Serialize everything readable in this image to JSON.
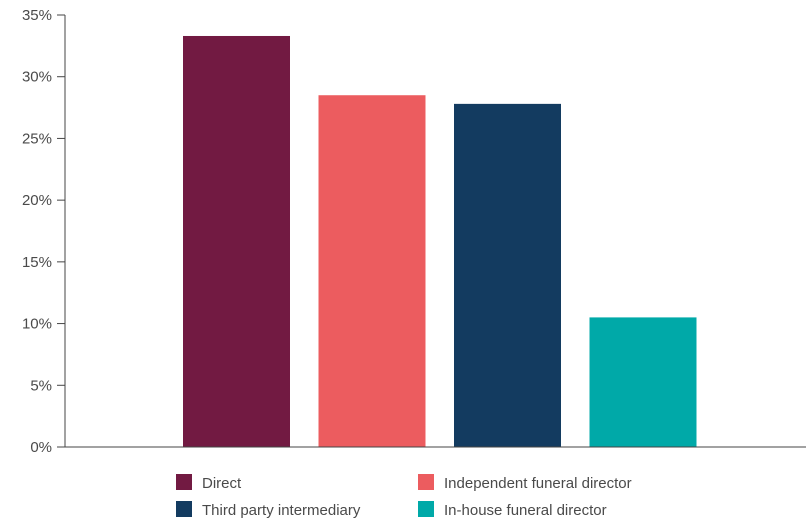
{
  "chart_data": {
    "type": "bar",
    "title": "",
    "xlabel": "",
    "ylabel": "",
    "ylim": [
      0,
      35
    ],
    "y_ticks": [
      0,
      5,
      10,
      15,
      20,
      25,
      30,
      35
    ],
    "y_tick_format": "percent",
    "grid": false,
    "legend_position": "bottom",
    "categories": [
      "Direct",
      "Independent funeral director",
      "Third party intermediary",
      "In-house funeral director"
    ],
    "values": [
      33.3,
      28.5,
      27.8,
      10.5
    ],
    "colors": [
      "#721a42",
      "#ec5c5f",
      "#133b60",
      "#00a9a8"
    ],
    "legend": [
      {
        "label": "Direct",
        "color": "#721a42"
      },
      {
        "label": "Independent funeral director",
        "color": "#ec5c5f"
      },
      {
        "label": "Third party intermediary",
        "color": "#133b60"
      },
      {
        "label": "In-house funeral director",
        "color": "#00a9a8"
      }
    ]
  }
}
